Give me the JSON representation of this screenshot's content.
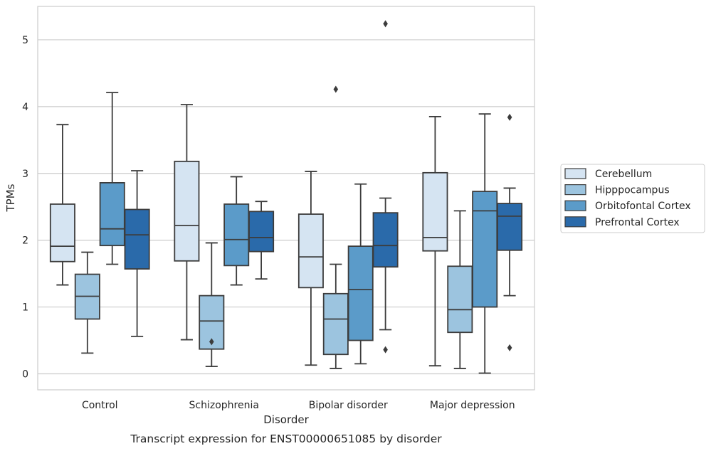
{
  "chart_data": {
    "type": "box",
    "caption": "Transcript expression for ENST00000651085 by disorder",
    "xlabel": "Disorder",
    "ylabel": "TPMs",
    "ylim": [
      -0.24,
      5.5
    ],
    "yticks": [
      0,
      1,
      2,
      3,
      4,
      5
    ],
    "grid": "horizontal",
    "legend_position": "right",
    "categories": [
      "Control",
      "Schizophrenia",
      "Bipolar disorder",
      "Major depression"
    ],
    "series": [
      {
        "name": "Cerebellum",
        "color": "#d5e4f2",
        "boxes": [
          {
            "whislo": 1.33,
            "q1": 1.68,
            "med": 1.91,
            "q3": 2.54,
            "whishi": 3.73,
            "fliers": []
          },
          {
            "whislo": 0.51,
            "q1": 1.69,
            "med": 2.22,
            "q3": 3.18,
            "whishi": 4.03,
            "fliers": []
          },
          {
            "whislo": 0.13,
            "q1": 1.29,
            "med": 1.75,
            "q3": 2.39,
            "whishi": 3.03,
            "fliers": []
          },
          {
            "whislo": 0.12,
            "q1": 1.84,
            "med": 2.04,
            "q3": 3.01,
            "whishi": 3.85,
            "fliers": []
          }
        ]
      },
      {
        "name": "Hipppocampus",
        "color": "#9cc4df",
        "boxes": [
          {
            "whislo": 0.31,
            "q1": 0.82,
            "med": 1.16,
            "q3": 1.49,
            "whishi": 1.82,
            "fliers": []
          },
          {
            "whislo": 0.11,
            "q1": 0.37,
            "med": 0.79,
            "q3": 1.17,
            "whishi": 1.96,
            "fliers": [
              0.48
            ]
          },
          {
            "whislo": 0.08,
            "q1": 0.29,
            "med": 0.82,
            "q3": 1.2,
            "whishi": 1.64,
            "fliers": [
              4.26
            ]
          },
          {
            "whislo": 0.08,
            "q1": 0.62,
            "med": 0.96,
            "q3": 1.61,
            "whishi": 2.44,
            "fliers": []
          }
        ]
      },
      {
        "name": "Orbitofontal Cortex",
        "color": "#5b9bc9",
        "boxes": [
          {
            "whislo": 1.64,
            "q1": 1.92,
            "med": 2.17,
            "q3": 2.86,
            "whishi": 4.21,
            "fliers": []
          },
          {
            "whislo": 1.33,
            "q1": 1.62,
            "med": 2.01,
            "q3": 2.54,
            "whishi": 2.95,
            "fliers": []
          },
          {
            "whislo": 0.15,
            "q1": 0.5,
            "med": 1.26,
            "q3": 1.91,
            "whishi": 2.84,
            "fliers": []
          },
          {
            "whislo": 0.01,
            "q1": 1.0,
            "med": 2.44,
            "q3": 2.73,
            "whishi": 3.89,
            "fliers": []
          }
        ]
      },
      {
        "name": "Prefrontal Cortex",
        "color": "#2a6aaa",
        "boxes": [
          {
            "whislo": 0.56,
            "q1": 1.57,
            "med": 2.08,
            "q3": 2.46,
            "whishi": 3.04,
            "fliers": []
          },
          {
            "whislo": 1.42,
            "q1": 1.83,
            "med": 2.04,
            "q3": 2.43,
            "whishi": 2.58,
            "fliers": []
          },
          {
            "whislo": 0.66,
            "q1": 1.6,
            "med": 1.92,
            "q3": 2.41,
            "whishi": 2.63,
            "fliers": [
              0.36,
              5.24
            ]
          },
          {
            "whislo": 1.17,
            "q1": 1.85,
            "med": 2.36,
            "q3": 2.55,
            "whishi": 2.78,
            "fliers": [
              0.39,
              3.84
            ]
          }
        ]
      }
    ]
  }
}
